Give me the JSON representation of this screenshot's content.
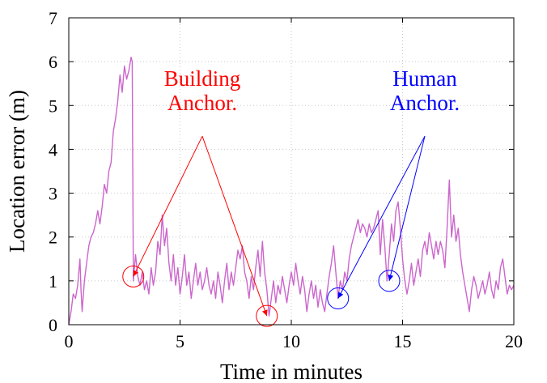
{
  "chart_data": {
    "type": "line",
    "xlabel": "Time in minutes",
    "ylabel": "Location error (m)",
    "xlim": [
      0,
      20
    ],
    "ylim": [
      0,
      7
    ],
    "xticks": [
      "0",
      "5",
      "10",
      "15",
      "20"
    ],
    "yticks": [
      "0",
      "1",
      "2",
      "3",
      "4",
      "5",
      "6",
      "7"
    ],
    "grid": true,
    "series": [
      {
        "color": "#cc66cc",
        "points": [
          [
            0.0,
            0.0
          ],
          [
            0.1,
            0.3
          ],
          [
            0.2,
            0.7
          ],
          [
            0.3,
            0.6
          ],
          [
            0.4,
            0.9
          ],
          [
            0.5,
            1.5
          ],
          [
            0.55,
            0.8
          ],
          [
            0.6,
            0.3
          ],
          [
            0.7,
            1.0
          ],
          [
            0.8,
            1.4
          ],
          [
            0.9,
            1.8
          ],
          [
            1.0,
            2.0
          ],
          [
            1.1,
            2.1
          ],
          [
            1.2,
            2.3
          ],
          [
            1.3,
            2.6
          ],
          [
            1.4,
            2.3
          ],
          [
            1.5,
            2.7
          ],
          [
            1.6,
            3.2
          ],
          [
            1.7,
            3.0
          ],
          [
            1.8,
            3.5
          ],
          [
            1.9,
            3.7
          ],
          [
            2.0,
            4.4
          ],
          [
            2.1,
            4.7
          ],
          [
            2.2,
            5.1
          ],
          [
            2.3,
            5.7
          ],
          [
            2.4,
            5.3
          ],
          [
            2.5,
            5.9
          ],
          [
            2.6,
            5.6
          ],
          [
            2.7,
            5.8
          ],
          [
            2.8,
            6.1
          ],
          [
            2.85,
            6.0
          ],
          [
            2.9,
            1.0
          ],
          [
            3.0,
            1.6
          ],
          [
            3.1,
            1.1
          ],
          [
            3.2,
            0.9
          ],
          [
            3.3,
            1.2
          ],
          [
            3.4,
            0.8
          ],
          [
            3.5,
            1.0
          ],
          [
            3.6,
            0.7
          ],
          [
            3.7,
            1.3
          ],
          [
            3.8,
            0.9
          ],
          [
            3.9,
            1.2
          ],
          [
            4.0,
            1.9
          ],
          [
            4.1,
            1.6
          ],
          [
            4.2,
            2.5
          ],
          [
            4.3,
            1.8
          ],
          [
            4.4,
            2.2
          ],
          [
            4.5,
            1.4
          ],
          [
            4.6,
            1.0
          ],
          [
            4.7,
            1.6
          ],
          [
            4.8,
            0.9
          ],
          [
            4.9,
            1.3
          ],
          [
            5.0,
            0.7
          ],
          [
            5.1,
            1.1
          ],
          [
            5.2,
            1.6
          ],
          [
            5.3,
            0.9
          ],
          [
            5.4,
            1.2
          ],
          [
            5.5,
            0.6
          ],
          [
            5.6,
            1.0
          ],
          [
            5.7,
            1.4
          ],
          [
            5.8,
            0.9
          ],
          [
            5.9,
            1.2
          ],
          [
            6.0,
            0.8
          ],
          [
            6.1,
            1.0
          ],
          [
            6.2,
            1.3
          ],
          [
            6.3,
            0.9
          ],
          [
            6.4,
            0.7
          ],
          [
            6.5,
            1.0
          ],
          [
            6.6,
            0.6
          ],
          [
            6.7,
            1.2
          ],
          [
            6.8,
            0.9
          ],
          [
            6.9,
            0.5
          ],
          [
            7.0,
            1.0
          ],
          [
            7.1,
            1.4
          ],
          [
            7.2,
            0.8
          ],
          [
            7.3,
            1.2
          ],
          [
            7.4,
            0.9
          ],
          [
            7.5,
            1.3
          ],
          [
            7.6,
            1.7
          ],
          [
            7.7,
            1.5
          ],
          [
            7.8,
            1.8
          ],
          [
            7.9,
            1.2
          ],
          [
            8.0,
            1.0
          ],
          [
            8.1,
            0.6
          ],
          [
            8.2,
            1.1
          ],
          [
            8.3,
            0.8
          ],
          [
            8.4,
            1.3
          ],
          [
            8.5,
            1.7
          ],
          [
            8.6,
            1.1
          ],
          [
            8.7,
            1.9
          ],
          [
            8.8,
            1.2
          ],
          [
            8.9,
            0.8
          ],
          [
            9.0,
            0.2
          ],
          [
            9.1,
            0.6
          ],
          [
            9.2,
            1.0
          ],
          [
            9.3,
            0.5
          ],
          [
            9.4,
            0.9
          ],
          [
            9.5,
            0.7
          ],
          [
            9.6,
            1.1
          ],
          [
            9.7,
            0.8
          ],
          [
            9.8,
            0.5
          ],
          [
            9.9,
            0.9
          ],
          [
            10.0,
            1.2
          ],
          [
            10.1,
            0.9
          ],
          [
            10.2,
            1.4
          ],
          [
            10.3,
            1.0
          ],
          [
            10.4,
            0.7
          ],
          [
            10.5,
            1.1
          ],
          [
            10.6,
            0.8
          ],
          [
            10.7,
            0.3
          ],
          [
            10.8,
            0.7
          ],
          [
            10.9,
            1.0
          ],
          [
            11.0,
            0.6
          ],
          [
            11.1,
            0.9
          ],
          [
            11.2,
            0.4
          ],
          [
            11.3,
            0.8
          ],
          [
            11.4,
            0.5
          ],
          [
            11.5,
            0.3
          ],
          [
            11.6,
            0.7
          ],
          [
            11.7,
            1.1
          ],
          [
            11.8,
            1.4
          ],
          [
            11.9,
            1.8
          ],
          [
            12.0,
            1.2
          ],
          [
            12.1,
            0.6
          ],
          [
            12.2,
            1.0
          ],
          [
            12.3,
            0.8
          ],
          [
            12.4,
            1.2
          ],
          [
            12.5,
            1.0
          ],
          [
            12.6,
            1.5
          ],
          [
            12.7,
            1.8
          ],
          [
            12.8,
            2.0
          ],
          [
            12.9,
            2.2
          ],
          [
            13.0,
            2.4
          ],
          [
            13.1,
            2.1
          ],
          [
            13.2,
            2.3
          ],
          [
            13.3,
            2.2
          ],
          [
            13.4,
            2.0
          ],
          [
            13.5,
            2.3
          ],
          [
            13.6,
            2.1
          ],
          [
            13.7,
            2.2
          ],
          [
            13.8,
            2.4
          ],
          [
            13.9,
            2.6
          ],
          [
            14.0,
            1.6
          ],
          [
            14.1,
            2.4
          ],
          [
            14.2,
            1.8
          ],
          [
            14.3,
            1.0
          ],
          [
            14.4,
            1.6
          ],
          [
            14.5,
            2.3
          ],
          [
            14.6,
            1.9
          ],
          [
            14.7,
            2.6
          ],
          [
            14.8,
            2.8
          ],
          [
            14.9,
            2.2
          ],
          [
            15.0,
            1.5
          ],
          [
            15.1,
            1.0
          ],
          [
            15.2,
            0.7
          ],
          [
            15.3,
            1.0
          ],
          [
            15.4,
            1.4
          ],
          [
            15.5,
            0.9
          ],
          [
            15.6,
            1.2
          ],
          [
            15.7,
            1.5
          ],
          [
            15.8,
            1.1
          ],
          [
            15.9,
            1.7
          ],
          [
            16.0,
            1.9
          ],
          [
            16.1,
            1.6
          ],
          [
            16.2,
            2.1
          ],
          [
            16.3,
            1.8
          ],
          [
            16.4,
            1.5
          ],
          [
            16.5,
            1.9
          ],
          [
            16.6,
            1.6
          ],
          [
            16.7,
            1.9
          ],
          [
            16.8,
            1.7
          ],
          [
            16.9,
            1.3
          ],
          [
            17.0,
            2.2
          ],
          [
            17.1,
            3.3
          ],
          [
            17.2,
            2.0
          ],
          [
            17.3,
            2.5
          ],
          [
            17.4,
            1.9
          ],
          [
            17.5,
            2.2
          ],
          [
            17.6,
            1.6
          ],
          [
            17.7,
            1.2
          ],
          [
            17.8,
            0.9
          ],
          [
            17.9,
            0.6
          ],
          [
            18.0,
            0.3
          ],
          [
            18.1,
            0.8
          ],
          [
            18.2,
            1.1
          ],
          [
            18.3,
            0.9
          ],
          [
            18.4,
            0.6
          ],
          [
            18.5,
            0.8
          ],
          [
            18.6,
            1.0
          ],
          [
            18.7,
            0.7
          ],
          [
            18.8,
            0.9
          ],
          [
            18.9,
            1.2
          ],
          [
            19.0,
            0.8
          ],
          [
            19.1,
            0.6
          ],
          [
            19.2,
            1.0
          ],
          [
            19.3,
            0.8
          ],
          [
            19.4,
            1.3
          ],
          [
            19.5,
            1.5
          ],
          [
            19.6,
            1.1
          ],
          [
            19.7,
            0.7
          ],
          [
            19.8,
            0.9
          ],
          [
            19.9,
            0.8
          ],
          [
            20.0,
            0.9
          ]
        ]
      }
    ],
    "annotations": [
      {
        "text_lines": [
          "Building",
          "Anchor."
        ],
        "color": "#ff0000",
        "label_anchor": [
          6.0,
          4.3
        ],
        "circles": [
          [
            2.9,
            1.1
          ],
          [
            8.9,
            0.2
          ]
        ]
      },
      {
        "text_lines": [
          "Human",
          "Anchor."
        ],
        "color": "#0000ff",
        "label_anchor": [
          16.0,
          4.3
        ],
        "circles": [
          [
            12.1,
            0.6
          ],
          [
            14.4,
            1.0
          ]
        ]
      }
    ]
  }
}
